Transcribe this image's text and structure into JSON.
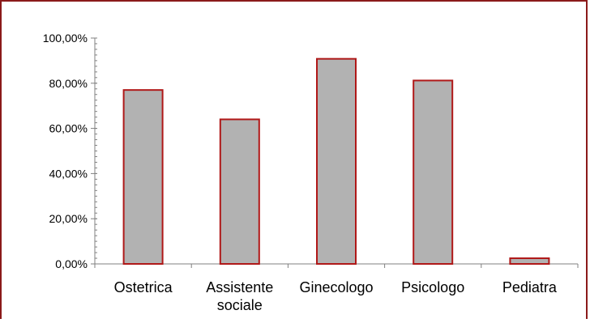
{
  "chart_data": {
    "type": "bar",
    "title": "",
    "xlabel": "",
    "ylabel": "",
    "categories": [
      [
        "Ostetrica"
      ],
      [
        "Assistente",
        "sociale"
      ],
      [
        "Ginecologo"
      ],
      [
        "Psicologo"
      ],
      [
        "Pediatra"
      ]
    ],
    "values": [
      77.0,
      64.0,
      90.8,
      81.2,
      2.5
    ],
    "ylim": [
      0,
      100
    ],
    "y_ticks": [
      0,
      20,
      40,
      60,
      80,
      100
    ],
    "y_tick_labels": [
      "0,00%",
      "20,00%",
      "40,00%",
      "60,00%",
      "80,00%",
      "100,00%"
    ],
    "grid": false,
    "legend": "none",
    "colors": {
      "bar_fill": "#b2b2b2",
      "bar_stroke": "#b01818",
      "frame": "#8b1a1a",
      "axis": "#808080"
    }
  }
}
